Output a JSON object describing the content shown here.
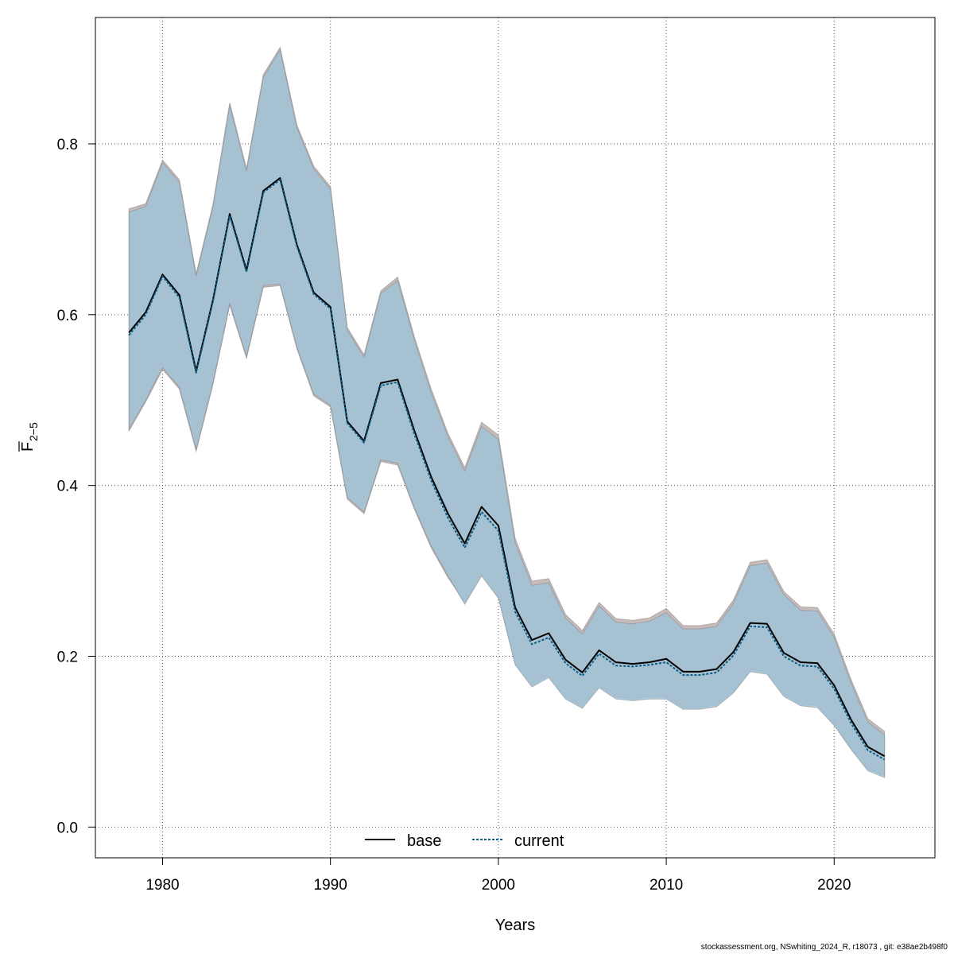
{
  "chart_data": {
    "type": "line",
    "title": "",
    "xlabel": "Years",
    "ylabel_main": "F",
    "ylabel_sub": "2−5",
    "xlim": [
      1976,
      2026
    ],
    "ylim": [
      -0.036,
      0.948
    ],
    "x_ticks": [
      1980,
      1990,
      2000,
      2010,
      2020
    ],
    "y_ticks": [
      0.0,
      0.2,
      0.4,
      0.6,
      0.8
    ],
    "y_tick_labels": [
      "0.0",
      "0.2",
      "0.4",
      "0.6",
      "0.8"
    ],
    "grid": true,
    "legend_position": "bottom-center",
    "x": [
      1978,
      1979,
      1980,
      1981,
      1982,
      1983,
      1984,
      1985,
      1986,
      1987,
      1988,
      1989,
      1990,
      1991,
      1992,
      1993,
      1994,
      1995,
      1996,
      1997,
      1998,
      1999,
      2000,
      2001,
      2002,
      2003,
      2004,
      2005,
      2006,
      2007,
      2008,
      2009,
      2010,
      2011,
      2012,
      2013,
      2014,
      2015,
      2016,
      2017,
      2018,
      2019,
      2020,
      2021,
      2022,
      2023
    ],
    "series": [
      {
        "name": "base",
        "color": "#000000",
        "band_color": "#b8a4a4",
        "values": [
          0.579,
          0.603,
          0.647,
          0.623,
          0.534,
          0.617,
          0.718,
          0.652,
          0.745,
          0.76,
          0.682,
          0.626,
          0.609,
          0.475,
          0.452,
          0.52,
          0.524,
          0.464,
          0.41,
          0.367,
          0.332,
          0.375,
          0.353,
          0.257,
          0.219,
          0.227,
          0.196,
          0.181,
          0.207,
          0.193,
          0.191,
          0.193,
          0.197,
          0.182,
          0.182,
          0.185,
          0.205,
          0.239,
          0.238,
          0.204,
          0.193,
          0.192,
          0.166,
          0.126,
          0.094,
          0.083
        ],
        "lower": [
          0.464,
          0.498,
          0.536,
          0.513,
          0.44,
          0.518,
          0.611,
          0.549,
          0.632,
          0.634,
          0.56,
          0.505,
          0.492,
          0.384,
          0.367,
          0.428,
          0.424,
          0.372,
          0.327,
          0.292,
          0.263,
          0.296,
          0.27,
          0.192,
          0.166,
          0.177,
          0.152,
          0.141,
          0.165,
          0.152,
          0.15,
          0.152,
          0.152,
          0.14,
          0.14,
          0.143,
          0.159,
          0.184,
          0.181,
          0.155,
          0.144,
          0.142,
          0.121,
          0.093,
          0.068,
          0.06
        ],
        "upper": [
          0.724,
          0.73,
          0.781,
          0.758,
          0.648,
          0.729,
          0.848,
          0.771,
          0.881,
          0.913,
          0.822,
          0.774,
          0.75,
          0.585,
          0.553,
          0.628,
          0.644,
          0.574,
          0.513,
          0.461,
          0.421,
          0.474,
          0.459,
          0.338,
          0.288,
          0.291,
          0.249,
          0.23,
          0.263,
          0.244,
          0.242,
          0.245,
          0.256,
          0.236,
          0.236,
          0.239,
          0.266,
          0.31,
          0.313,
          0.276,
          0.258,
          0.257,
          0.226,
          0.173,
          0.127,
          0.112
        ]
      },
      {
        "name": "current",
        "color": "#0b5e86",
        "band_color": "#9cc3d8",
        "values": [
          0.576,
          0.6,
          0.645,
          0.62,
          0.532,
          0.615,
          0.716,
          0.65,
          0.743,
          0.758,
          0.68,
          0.624,
          0.607,
          0.473,
          0.45,
          0.517,
          0.521,
          0.46,
          0.406,
          0.362,
          0.327,
          0.369,
          0.347,
          0.252,
          0.214,
          0.222,
          0.192,
          0.177,
          0.203,
          0.189,
          0.188,
          0.19,
          0.193,
          0.178,
          0.178,
          0.181,
          0.201,
          0.235,
          0.234,
          0.2,
          0.189,
          0.188,
          0.162,
          0.122,
          0.09,
          0.079
        ],
        "lower": [
          0.466,
          0.5,
          0.538,
          0.515,
          0.442,
          0.52,
          0.613,
          0.551,
          0.634,
          0.636,
          0.562,
          0.507,
          0.494,
          0.386,
          0.369,
          0.43,
          0.426,
          0.374,
          0.329,
          0.294,
          0.261,
          0.294,
          0.268,
          0.19,
          0.164,
          0.175,
          0.15,
          0.139,
          0.163,
          0.15,
          0.148,
          0.15,
          0.15,
          0.138,
          0.138,
          0.141,
          0.157,
          0.182,
          0.179,
          0.153,
          0.142,
          0.14,
          0.119,
          0.091,
          0.066,
          0.058
        ],
        "upper": [
          0.72,
          0.727,
          0.778,
          0.755,
          0.645,
          0.726,
          0.845,
          0.768,
          0.878,
          0.91,
          0.819,
          0.771,
          0.747,
          0.582,
          0.55,
          0.625,
          0.64,
          0.57,
          0.509,
          0.457,
          0.417,
          0.469,
          0.454,
          0.333,
          0.283,
          0.286,
          0.245,
          0.226,
          0.259,
          0.24,
          0.238,
          0.241,
          0.251,
          0.232,
          0.232,
          0.235,
          0.262,
          0.306,
          0.309,
          0.272,
          0.254,
          0.253,
          0.222,
          0.169,
          0.123,
          0.108
        ]
      }
    ]
  },
  "footer": "stockassessment.org, NSwhiting_2024_R, r18073 , git: e38ae2b498f0"
}
